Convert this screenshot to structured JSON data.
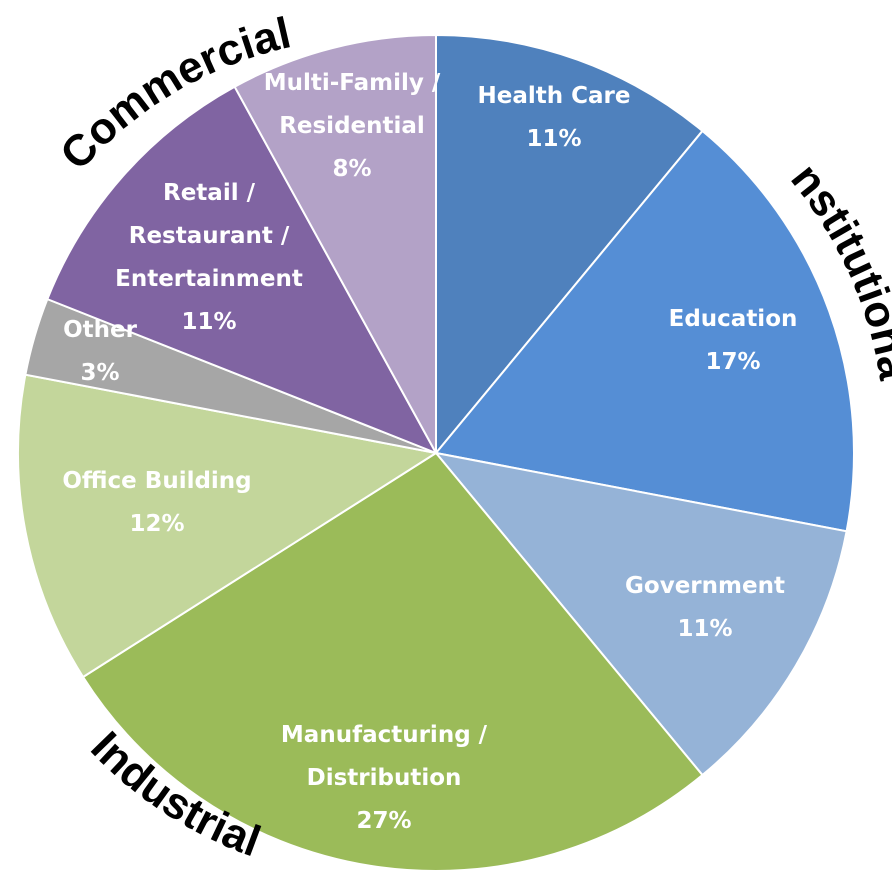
{
  "chart_data": {
    "type": "pie",
    "slices": [
      {
        "label": "Health Care",
        "value": 11,
        "pct_label": "11%",
        "color": "#4f81bd"
      },
      {
        "label": "Education",
        "value": 17,
        "pct_label": "17%",
        "color": "#558ed5"
      },
      {
        "label": "Government",
        "value": 11,
        "pct_label": "11%",
        "color": "#95b3d7"
      },
      {
        "label": "Manufacturing / Distribution",
        "value": 27,
        "pct_label": "27%",
        "color": "#9bbb59"
      },
      {
        "label": "Office Building",
        "value": 12,
        "pct_label": "12%",
        "color": "#c3d69b"
      },
      {
        "label": "Other",
        "value": 3,
        "pct_label": "3%",
        "color": "#a6a6a6"
      },
      {
        "label": "Retail / Restaurant / Entertainment",
        "value": 11,
        "pct_label": "11%",
        "color": "#8064a2"
      },
      {
        "label": "Multi-Family / Residential",
        "value": 8,
        "pct_label": "8%",
        "color": "#b3a2c7"
      }
    ],
    "groups": [
      {
        "name": "Institutional"
      },
      {
        "name": "Industrial"
      },
      {
        "name": "Commercial"
      }
    ]
  }
}
